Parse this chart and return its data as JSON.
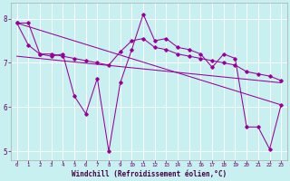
{
  "xlabel": "Windchill (Refroidissement éolien,°C)",
  "bg_color": "#c8f0f0",
  "grid_color": "#ffffff",
  "line_color": "#990099",
  "x": [
    0,
    1,
    2,
    3,
    4,
    5,
    6,
    7,
    8,
    9,
    10,
    11,
    12,
    13,
    14,
    15,
    16,
    17,
    18,
    19,
    20,
    21,
    22,
    23
  ],
  "series1": [
    7.9,
    7.4,
    7.2,
    7.15,
    7.2,
    6.25,
    5.85,
    6.65,
    5.0,
    6.55,
    7.3,
    8.1,
    7.5,
    7.55,
    7.35,
    7.3,
    7.2,
    6.9,
    7.2,
    7.1,
    5.55,
    5.55,
    5.05,
    6.05
  ],
  "series2": [
    7.9,
    7.9,
    7.2,
    7.2,
    7.15,
    7.1,
    7.05,
    7.0,
    6.95,
    7.25,
    7.5,
    7.55,
    7.35,
    7.3,
    7.2,
    7.15,
    7.1,
    7.05,
    7.0,
    6.95,
    6.8,
    6.75,
    6.7,
    6.6
  ],
  "trend1": [
    7.9,
    6.05
  ],
  "trend2": [
    7.15,
    6.55
  ],
  "ylim": [
    4.8,
    8.35
  ],
  "xlim": [
    -0.5,
    23.5
  ],
  "yticks": [
    5,
    6,
    7,
    8
  ],
  "xticks": [
    0,
    1,
    2,
    3,
    4,
    5,
    6,
    7,
    8,
    9,
    10,
    11,
    12,
    13,
    14,
    15,
    16,
    17,
    18,
    19,
    20,
    21,
    22,
    23
  ]
}
